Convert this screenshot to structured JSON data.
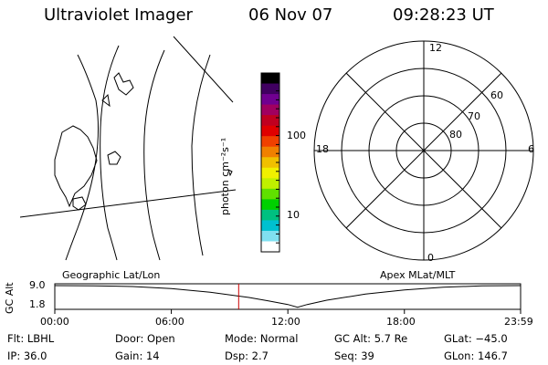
{
  "header": {
    "instrument": "Ultraviolet Imager",
    "date": "06 Nov 07",
    "time": "09:28:23 UT"
  },
  "colorbar": {
    "unit_label": "photon cm⁻²s⁻¹",
    "scale": "log",
    "ticks": [
      "100",
      "10"
    ],
    "colors": [
      "#000000",
      "#400060",
      "#700090",
      "#a00060",
      "#c00020",
      "#e00000",
      "#f04000",
      "#f08000",
      "#f0c000",
      "#f0f000",
      "#c0f000",
      "#60e000",
      "#00d000",
      "#00c080",
      "#00c0d0",
      "#80e0f0",
      "#ffffff"
    ]
  },
  "polar": {
    "mlt_labels": [
      "12",
      "18",
      "6",
      "0"
    ],
    "lat_labels": [
      "60",
      "70",
      "80"
    ]
  },
  "timeline": {
    "ylabel": "GC Alt",
    "left_title": "Geographic Lat/Lon",
    "right_title": "Apex MLat/MLT",
    "ytick_top": "9.0",
    "ytick_bottom": "1.8",
    "xticks": [
      "00:00",
      "06:00",
      "12:00",
      "18:00",
      "23:59"
    ],
    "marker_color": "#cc0000"
  },
  "status": {
    "flt": "Flt: LBHL",
    "ip": "IP: 36.0",
    "door": "Door: Open",
    "gain": "Gain: 14",
    "mode": "Mode: Normal",
    "dsp": "Dsp:    2.7",
    "gc_alt": "GC Alt: 5.7 Re",
    "seq": "Seq: 39",
    "glat": "GLat: −45.0",
    "glon": "GLon: 146.7"
  },
  "chart_data": {
    "type": "line",
    "title": "",
    "xlabel": "",
    "ylabel": "GC Alt",
    "x": [
      "00:00",
      "02:00",
      "04:00",
      "06:00",
      "08:00",
      "10:00",
      "11:00",
      "12:00",
      "12:30",
      "13:00",
      "14:00",
      "16:00",
      "18:00",
      "20:00",
      "22:00",
      "23:59"
    ],
    "series": [
      {
        "values": [
          9.0,
          8.95,
          8.7,
          8.0,
          6.8,
          5.1,
          4.0,
          2.8,
          1.9,
          2.8,
          4.2,
          6.2,
          7.6,
          8.5,
          8.9,
          9.0
        ]
      }
    ],
    "xticks": [
      "00:00",
      "06:00",
      "12:00",
      "18:00",
      "23:59"
    ],
    "ylim": [
      1.8,
      9.0
    ],
    "current_time": "09:28"
  }
}
